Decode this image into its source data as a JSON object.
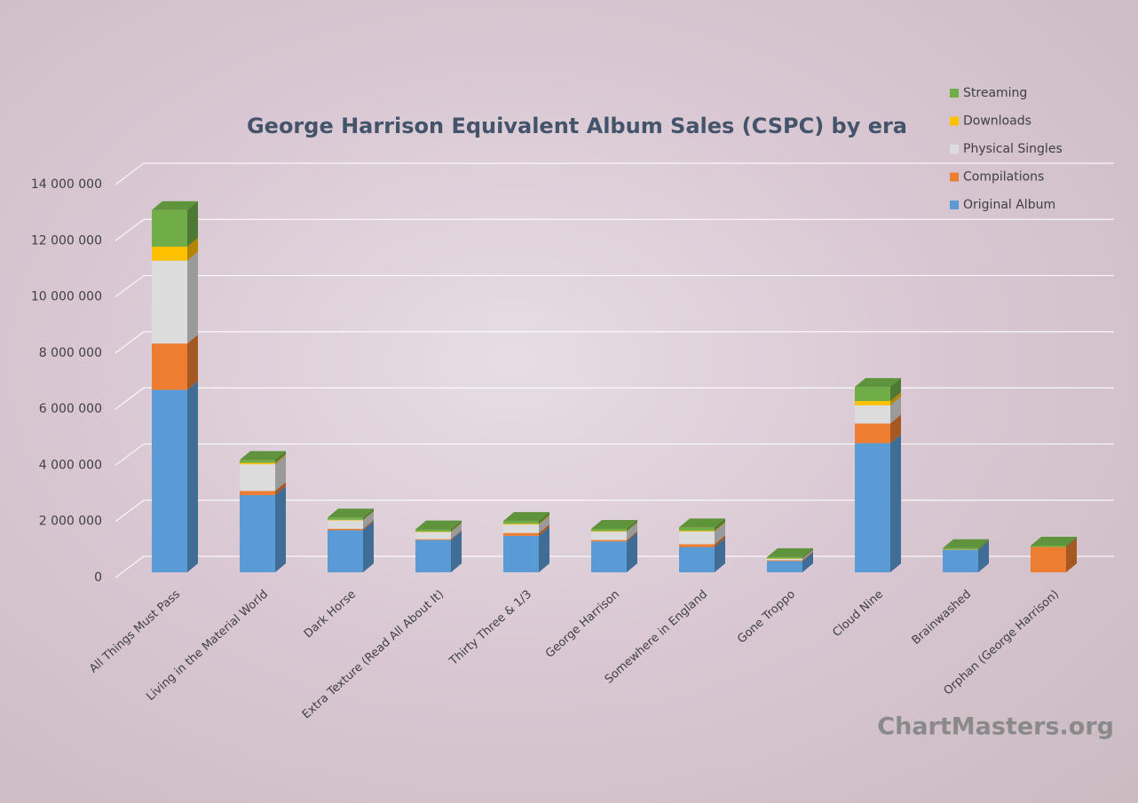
{
  "chart_data": {
    "type": "bar3d-stacked",
    "title": "George Harrison Equivalent Album Sales (CSPC) by era",
    "watermark": "ChartMasters.org",
    "categories": [
      "All Things Must Pass",
      "Living in the Material World",
      "Dark Horse",
      "Extra Texture (Read All About It)",
      "Thirty Three & 1/3",
      "George Harrison",
      "Somewhere in England",
      "Gone Troppo",
      "Cloud Nine",
      "Brainwashed",
      "Orphan (George Harrison)"
    ],
    "series": [
      {
        "name": "Original Album",
        "color": "#5b9bd5",
        "values": [
          6500000,
          2750000,
          1500000,
          1150000,
          1300000,
          1100000,
          900000,
          400000,
          4600000,
          800000,
          0
        ]
      },
      {
        "name": "Compilations",
        "color": "#ed7d31",
        "values": [
          1650000,
          150000,
          50000,
          30000,
          100000,
          50000,
          100000,
          30000,
          700000,
          0,
          900000
        ]
      },
      {
        "name": "Physical Singles",
        "color": "#dcdcdc",
        "values": [
          2950000,
          950000,
          300000,
          250000,
          300000,
          300000,
          450000,
          50000,
          650000,
          0,
          0
        ]
      },
      {
        "name": "Downloads",
        "color": "#ffc000",
        "values": [
          500000,
          50000,
          20000,
          20000,
          30000,
          20000,
          30000,
          10000,
          150000,
          10000,
          0
        ]
      },
      {
        "name": "Streaming",
        "color": "#70ad47",
        "values": [
          1300000,
          100000,
          80000,
          80000,
          100000,
          80000,
          120000,
          50000,
          500000,
          50000,
          50000
        ]
      }
    ],
    "ylim": [
      0,
      14000000
    ],
    "yticks": [
      0,
      {
        "value": 2000000,
        "label": "2 000 000"
      },
      {
        "value": 4000000,
        "label": "4 000 000"
      },
      {
        "value": 6000000,
        "label": "6 000 000"
      },
      {
        "value": 8000000,
        "label": "8 000 000"
      },
      {
        "value": 10000000,
        "label": "10 000 000"
      },
      {
        "value": 12000000,
        "label": "12 000 000"
      },
      {
        "value": 14000000,
        "label": "14 000 000"
      }
    ],
    "grid": true,
    "legend": "top-right"
  }
}
